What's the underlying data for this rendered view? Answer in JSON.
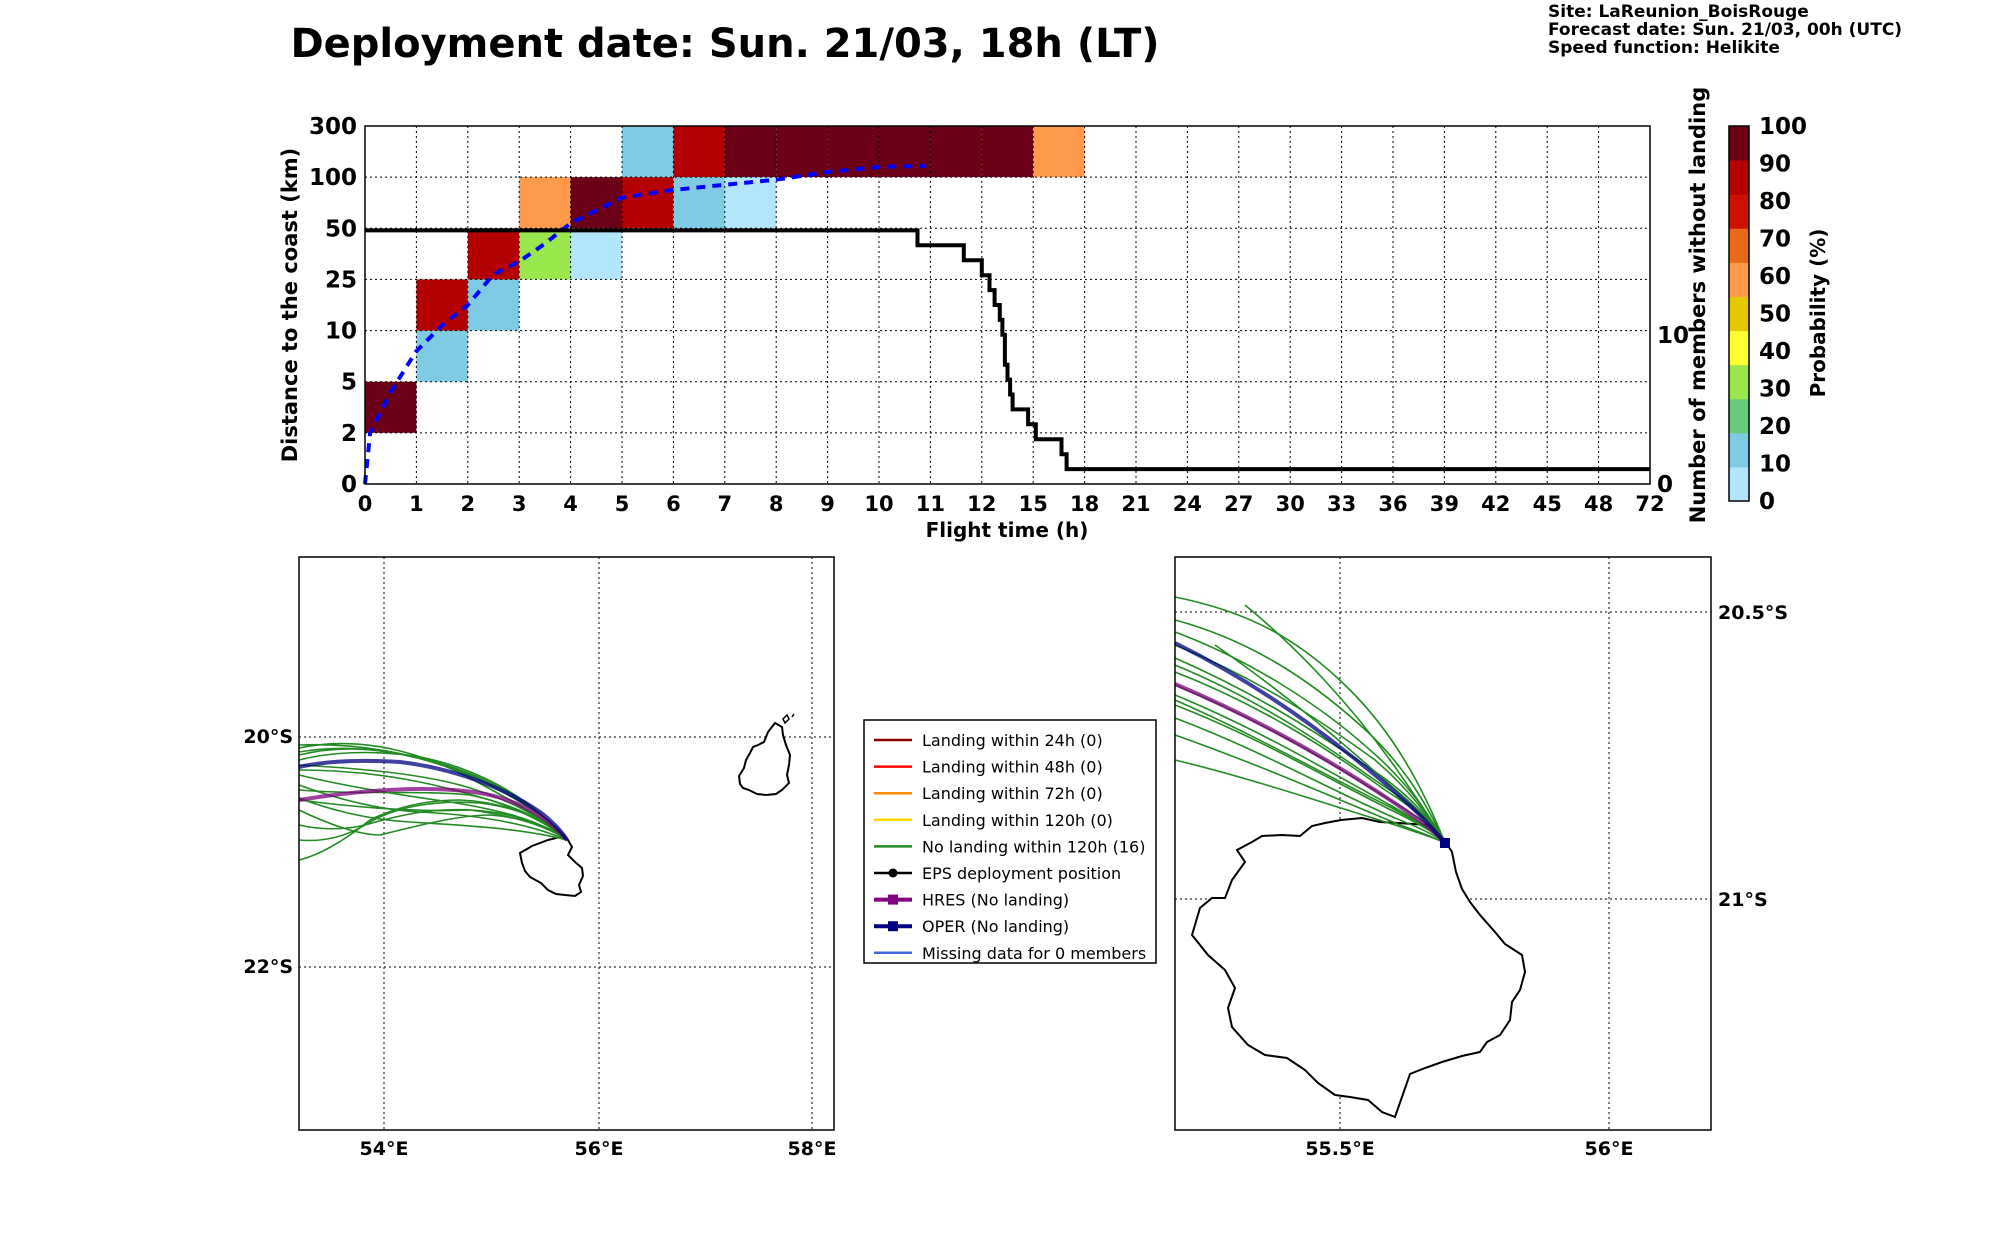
{
  "header": {
    "title": "Deployment date: Sun. 21/03, 18h (LT)",
    "site": "Site: LaReunion_BoisRouge",
    "forecast": "Forecast date: Sun. 21/03, 00h (UTC)",
    "speed": "Speed function: Helikite"
  },
  "chart_data": [
    {
      "type": "heatmap",
      "xlabel": "Flight time (h)",
      "ylabel": "Distance to the coast (km)",
      "y2label": "Number of members without landing",
      "x_ticks": [
        "0",
        "1",
        "2",
        "3",
        "4",
        "5",
        "6",
        "7",
        "8",
        "9",
        "10",
        "11",
        "12",
        "15",
        "18",
        "21",
        "24",
        "27",
        "30",
        "33",
        "36",
        "39",
        "42",
        "45",
        "48",
        "72"
      ],
      "y_ticks": [
        "0",
        "2",
        "5",
        "10",
        "25",
        "50",
        "100",
        "300"
      ],
      "y2_ticks": [
        "0",
        "10"
      ],
      "grid": true,
      "cells": [
        {
          "x": 0,
          "y": 1,
          "p": 100
        },
        {
          "x": 1,
          "y": 2,
          "p": 10
        },
        {
          "x": 1,
          "y": 3,
          "p": 90
        },
        {
          "x": 2,
          "y": 3,
          "p": 10
        },
        {
          "x": 2,
          "y": 4,
          "p": 90
        },
        {
          "x": 3,
          "y": 4,
          "p": 30
        },
        {
          "x": 3,
          "y": 5,
          "p": 60
        },
        {
          "x": 4,
          "y": 4,
          "p": 0
        },
        {
          "x": 4,
          "y": 5,
          "p": 100
        },
        {
          "x": 5,
          "y": 5,
          "p": 90
        },
        {
          "x": 5,
          "y": 6,
          "p": 10
        },
        {
          "x": 6,
          "y": 5,
          "p": 10
        },
        {
          "x": 6,
          "y": 6,
          "p": 90
        },
        {
          "x": 7,
          "y": 5,
          "p": 0
        },
        {
          "x": 7,
          "y": 6,
          "p": 100
        },
        {
          "x": 8,
          "y": 6,
          "p": 100
        },
        {
          "x": 9,
          "y": 6,
          "p": 100
        },
        {
          "x": 10,
          "y": 6,
          "p": 100
        },
        {
          "x": 11,
          "y": 6,
          "p": 100
        },
        {
          "x": 12,
          "y": 6,
          "p": 100
        },
        {
          "x": 13,
          "y": 6,
          "p": 60
        }
      ],
      "series": [
        {
          "type": "line",
          "style": "dashed",
          "color": "#0000ff",
          "points": [
            [
              0,
              0
            ],
            [
              0.1,
              1
            ],
            [
              0.5,
              1.8
            ],
            [
              1,
              2.6
            ],
            [
              1.5,
              3.1
            ],
            [
              2,
              3.5
            ],
            [
              2.5,
              4.1
            ],
            [
              3,
              4.35
            ],
            [
              3.5,
              4.7
            ],
            [
              4,
              5.1
            ],
            [
              5,
              5.6
            ],
            [
              6,
              5.75
            ],
            [
              7,
              5.85
            ],
            [
              8,
              5.95
            ],
            [
              9,
              6.1
            ],
            [
              10,
              6.2
            ],
            [
              10.9,
              6.22
            ]
          ]
        },
        {
          "type": "step",
          "axis": "right",
          "color": "#000000",
          "points": [
            [
              0,
              17
            ],
            [
              10.7,
              17
            ],
            [
              10.75,
              16
            ],
            [
              11.6,
              16
            ],
            [
              11.65,
              15
            ],
            [
              11.9,
              15
            ],
            [
              12,
              14
            ],
            [
              12.1,
              14
            ],
            [
              12.15,
              13
            ],
            [
              12.25,
              12
            ],
            [
              12.35,
              11
            ],
            [
              12.4,
              10
            ],
            [
              12.45,
              8
            ],
            [
              12.5,
              7
            ],
            [
              12.55,
              6
            ],
            [
              12.6,
              5
            ],
            [
              12.85,
              5
            ],
            [
              12.9,
              4
            ],
            [
              13,
              4
            ],
            [
              13.05,
              3
            ],
            [
              13.5,
              3
            ],
            [
              13.55,
              2
            ],
            [
              13.6,
              2
            ],
            [
              13.65,
              1
            ],
            [
              25,
              1
            ]
          ]
        }
      ],
      "colorbar": {
        "label": "Probability (%)",
        "ticks": [
          "0",
          "10",
          "20",
          "30",
          "40",
          "50",
          "60",
          "70",
          "80",
          "90",
          "100"
        ],
        "colors": [
          "#b3e5fc",
          "#7ecbe3",
          "#66cc7a",
          "#99e64d",
          "#ffff33",
          "#e6c800",
          "#ff9a4d",
          "#e66a1a",
          "#cc1100",
          "#b30000",
          "#6b0016"
        ]
      }
    }
  ],
  "legend": {
    "items": [
      {
        "label": "Landing within 24h (0)",
        "color": "#8b0000",
        "marker": "none"
      },
      {
        "label": "Landing within 48h (0)",
        "color": "#ff0000",
        "marker": "none"
      },
      {
        "label": "Landing within 72h (0)",
        "color": "#ff8c00",
        "marker": "none"
      },
      {
        "label": "Landing within 120h (0)",
        "color": "#ffd700",
        "marker": "none"
      },
      {
        "label": "No landing within 120h (16)",
        "color": "#228b22",
        "marker": "none"
      },
      {
        "label": "EPS deployment position",
        "color": "#000000",
        "marker": "circle"
      },
      {
        "label": "HRES (No landing)",
        "color": "#800080",
        "marker": "square"
      },
      {
        "label": "OPER (No landing)",
        "color": "#000080",
        "marker": "square"
      },
      {
        "label": "Missing data for 0 members",
        "color": "#4169e1",
        "marker": "none"
      }
    ]
  },
  "maps": {
    "left": {
      "lon_ticks": [
        "54°E",
        "56°E",
        "58°E"
      ],
      "lat_ticks": [
        "20°S",
        "22°S"
      ]
    },
    "right": {
      "lon_ticks": [
        "55.5°E",
        "56°E"
      ],
      "lat_ticks": [
        "20.5°S",
        "21°S"
      ]
    }
  }
}
